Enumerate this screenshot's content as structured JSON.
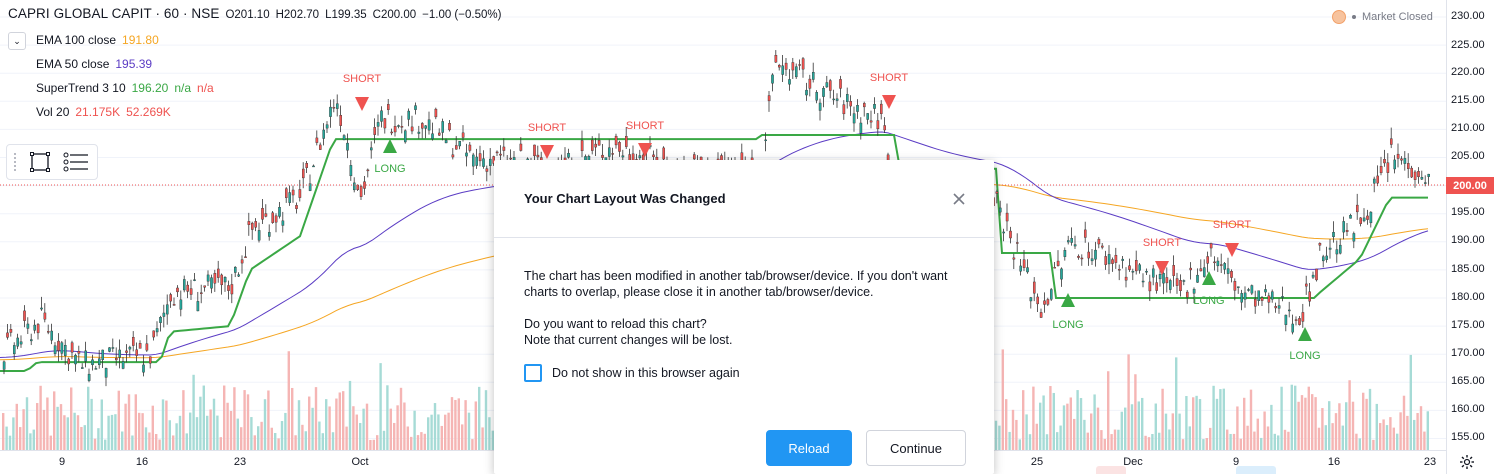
{
  "legend": {
    "symbol": "CAPRI GLOBAL CAPIT · 60 · NSE",
    "open": "O201.10",
    "high": "H202.70",
    "low": "L199.35",
    "close": "C200.00",
    "change": "−1.00 (−0.50%)",
    "indicators": [
      {
        "name": "EMA 100 close",
        "values": [
          "191.80"
        ],
        "colors": [
          "#f5a623"
        ]
      },
      {
        "name": "EMA 50 close",
        "values": [
          "195.39"
        ],
        "colors": [
          "#5b3cc4"
        ]
      },
      {
        "name": "SuperTrend 3 10",
        "values": [
          "196.20",
          "n/a",
          "n/a"
        ],
        "colors": [
          "#3aa845",
          "#3aa845",
          "#ef5350"
        ]
      },
      {
        "name": "Vol 20",
        "values": [
          "21.175K",
          "52.269K"
        ],
        "colors": [
          "#ef5350",
          "#ef5350"
        ]
      }
    ]
  },
  "market_status": "Market Closed",
  "price_axis": {
    "ticks": [
      "230.00",
      "225.00",
      "220.00",
      "215.00",
      "210.00",
      "205.00",
      "200.00",
      "195.00",
      "190.00",
      "185.00",
      "180.00",
      "175.00",
      "170.00",
      "165.00",
      "160.00",
      "155.00"
    ],
    "last_price": "200.00"
  },
  "time_axis": {
    "ticks": [
      "9",
      "16",
      "23",
      "Oct",
      "25",
      "Dec",
      "9",
      "16",
      "23"
    ]
  },
  "signals": [
    {
      "type": "short",
      "label": "SHORT"
    },
    {
      "type": "long",
      "label": "LONG"
    },
    {
      "type": "short",
      "label": "SHORT"
    },
    {
      "type": "short",
      "label": "SHORT"
    },
    {
      "type": "short",
      "label": "SHORT"
    },
    {
      "type": "long",
      "label": "LONG"
    },
    {
      "type": "short",
      "label": "SHORT"
    },
    {
      "type": "short",
      "label": "SHORT"
    },
    {
      "type": "long",
      "label": "LONG"
    },
    {
      "type": "long",
      "label": "LONG"
    }
  ],
  "colors": {
    "up": "#26a69a",
    "down": "#ef5350",
    "ema100": "#f5a623",
    "ema50": "#5b3cc4",
    "supertrend_up": "#3aa845",
    "supertrend_down": "#ef5350",
    "accent": "#2196f3"
  },
  "dialog": {
    "title": "Your Chart Layout Was Changed",
    "message": "The chart has been modified in another tab/browser/device. If you don't want charts to overlap, please close it in another tab/browser/device.",
    "question": "Do you want to reload this chart?",
    "warning": "Note that current changes will be lost.",
    "checkbox_label": "Do not show in this browser again",
    "reload_label": "Reload",
    "continue_label": "Continue"
  }
}
